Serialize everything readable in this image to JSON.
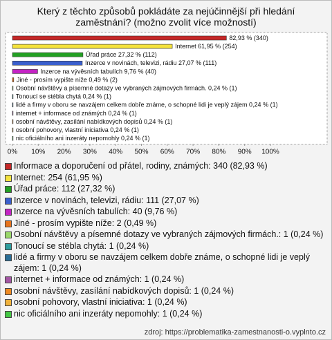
{
  "chart_data": {
    "type": "bar",
    "orientation": "horizontal",
    "title": "Který z těchto způsobů pokládáte za nejúčinnější při hledání zaměstnání? (možno zvolit více možností)",
    "values": [
      82.93,
      61.95,
      27.32,
      27.07,
      9.76,
      0.49,
      0.24,
      0.24,
      0.24,
      0.24,
      0.24,
      0.24,
      0.24
    ],
    "value_labels": [
      "82,93 % (340)",
      "Internet 61,95 % (254)",
      "Úřad práce 27,32 % (112)",
      "Inzerce v novinách, televizi, rádiu 27,07 % (111)",
      "Inzerce na vývěsních tabulích 9,76 % (40)",
      "Jiné - prosím vypište níže 0,49 % (2)",
      "Osobní návštěvy a písemné dotazy  ve vybraných zájmových  firmách. 0,24 % (1)",
      "Tonoucí se stébla chytá 0,24 % (1)",
      "lidé a firmy v oboru se navzájem celkem dobře známe, o schopné lidi je veplý zájem 0,24 % (1)",
      "internet + informace od známých 0,24 % (1)",
      "osobní návštěvy, zasílání nabídkových dopisů 0,24 % (1)",
      "osobní pohovory, vlastní iniciativa 0,24 % (1)",
      "nic oficiálního ani inzeráty nepomohly 0,24 % (1)"
    ],
    "legend": [
      "Informace a doporučení od přátel, rodiny, známých: 340 (82,93 %)",
      "Internet: 254 (61,95 %)",
      "Úřad práce: 112 (27,32 %)",
      "Inzerce v novinách, televizi, rádiu: 111 (27,07 %)",
      "Inzerce na vývěsních tabulích: 40 (9,76 %)",
      "Jiné - prosím vypište níže: 2 (0,49 %)",
      "Osobní návštěvy a písemné dotazy  ve vybraných zájmových  firmách.: 1 (0,24 %)",
      "Tonoucí se stébla chytá: 1 (0,24 %)",
      "lidé a firmy v oboru se navzájem celkem dobře známe, o schopné lidi je veplý zájem: 1 (0,24 %)",
      "internet + informace od známých: 1 (0,24 %)",
      "osobní návštěvy, zasílání nabídkových dopisů: 1 (0,24 %)",
      "osobní pohovory, vlastní iniciativa: 1 (0,24 %)",
      "nic oficiálního ani inzeráty nepomohly: 1 (0,24 %)"
    ],
    "colors": [
      "#c62828",
      "#f4e23c",
      "#22a022",
      "#3a5fcd",
      "#c424c4",
      "#e8741c",
      "#9ad86a",
      "#2f9e9e",
      "#2a6e96",
      "#a456a4",
      "#ee8a22",
      "#f0b23c",
      "#44c844"
    ],
    "xlim": [
      0,
      100
    ],
    "xticks": [
      {
        "value": 0,
        "label": "0%"
      },
      {
        "value": 10,
        "label": "10%"
      },
      {
        "value": 20,
        "label": "20%"
      },
      {
        "value": 30,
        "label": "30%"
      },
      {
        "value": 40,
        "label": "40%"
      },
      {
        "value": 50,
        "label": "50%"
      },
      {
        "value": 60,
        "label": "60%"
      },
      {
        "value": 70,
        "label": "70%"
      },
      {
        "value": 80,
        "label": "80%"
      },
      {
        "value": 90,
        "label": "90%"
      },
      {
        "value": 100,
        "label": "100%"
      }
    ],
    "source": "zdroj: https://problematika-zamestnanosti-o.vyplnto.cz"
  }
}
